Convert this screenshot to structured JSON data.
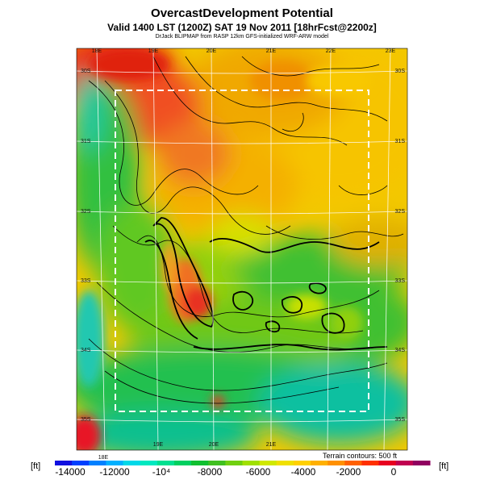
{
  "header": {
    "title": "OvercastDevelopment Potential",
    "subtitle": "Valid 1400 LST (1200Z) SAT 19 Nov 2011 [18hrFcst@2200z]",
    "byline": "DrJack BLIPMAP from RASP 12km GFS-initialized WRF-ARW model"
  },
  "map": {
    "top_lon_labels": [
      "18E",
      "19E",
      "20E",
      "21E",
      "22E",
      "23E"
    ],
    "bottom_lon_labels": [
      "18E",
      "19E",
      "20E",
      "21E"
    ],
    "left_lat_labels": [
      "30S",
      "31S",
      "32S",
      "33S",
      "34S",
      "35S"
    ],
    "right_lat_labels": [
      "30S",
      "31S",
      "32S",
      "33S",
      "34S",
      "35S"
    ],
    "terrain_note": "Terrain contours: 500 ft"
  },
  "colorbar": {
    "unit_left": "[ft]",
    "unit_right": "[ft]",
    "labels": [
      "-14000",
      "-12000",
      "-10⁴",
      "-8000",
      "-6000",
      "-4000",
      "-2000",
      "0"
    ],
    "colors": [
      "#1010e0",
      "#0040ff",
      "#0080ff",
      "#00b0ff",
      "#00d8e8",
      "#00e8c0",
      "#00e090",
      "#00d060",
      "#10c030",
      "#40c020",
      "#70d010",
      "#a0e000",
      "#d0e800",
      "#f0e000",
      "#ffd000",
      "#ffb000",
      "#ff9000",
      "#ff6000",
      "#ff3000",
      "#e80020",
      "#c00050",
      "#900060"
    ]
  }
}
